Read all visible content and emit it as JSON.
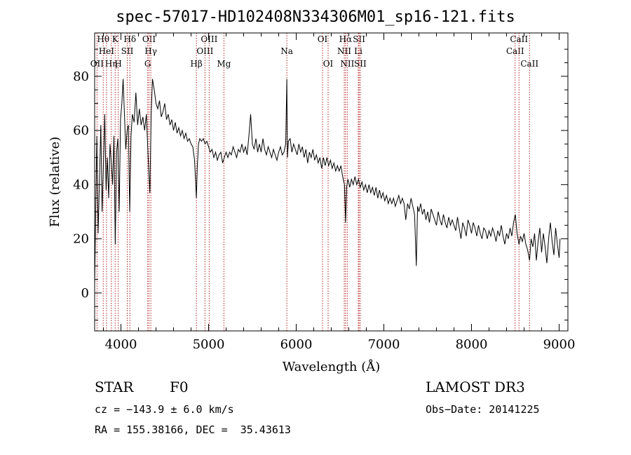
{
  "chart_data": {
    "type": "line",
    "title": "spec-57017-HD102408N334306M01_sp16-121.fits",
    "xlabel": "Wavelength (Å)",
    "ylabel": "Flux (relative)",
    "xlim": [
      3700,
      9100
    ],
    "ylim": [
      -14,
      96
    ],
    "x_ticks": [
      4000,
      5000,
      6000,
      7000,
      8000,
      9000
    ],
    "y_ticks": [
      0,
      20,
      40,
      60,
      80
    ],
    "series": [
      {
        "name": "spectrum",
        "points": [
          [
            3700,
            3
          ],
          [
            3712,
            30
          ],
          [
            3725,
            58
          ],
          [
            3740,
            22
          ],
          [
            3755,
            42
          ],
          [
            3770,
            62
          ],
          [
            3785,
            30
          ],
          [
            3800,
            47
          ],
          [
            3815,
            66
          ],
          [
            3830,
            38
          ],
          [
            3845,
            50
          ],
          [
            3860,
            35
          ],
          [
            3875,
            55
          ],
          [
            3890,
            48
          ],
          [
            3905,
            40
          ],
          [
            3920,
            58
          ],
          [
            3935,
            18
          ],
          [
            3950,
            52
          ],
          [
            3965,
            57
          ],
          [
            3980,
            30
          ],
          [
            3995,
            64
          ],
          [
            4010,
            70
          ],
          [
            4025,
            79
          ],
          [
            4040,
            66
          ],
          [
            4055,
            53
          ],
          [
            4070,
            60
          ],
          [
            4085,
            62
          ],
          [
            4100,
            30
          ],
          [
            4115,
            58
          ],
          [
            4130,
            66
          ],
          [
            4150,
            63
          ],
          [
            4170,
            74
          ],
          [
            4190,
            62
          ],
          [
            4210,
            68
          ],
          [
            4230,
            62
          ],
          [
            4250,
            65
          ],
          [
            4270,
            60
          ],
          [
            4290,
            66
          ],
          [
            4310,
            50
          ],
          [
            4330,
            37
          ],
          [
            4345,
            66
          ],
          [
            4360,
            79
          ],
          [
            4380,
            75
          ],
          [
            4400,
            70
          ],
          [
            4420,
            68
          ],
          [
            4440,
            71
          ],
          [
            4460,
            65
          ],
          [
            4480,
            67
          ],
          [
            4500,
            70
          ],
          [
            4520,
            64
          ],
          [
            4540,
            66
          ],
          [
            4560,
            62
          ],
          [
            4580,
            64
          ],
          [
            4600,
            60
          ],
          [
            4620,
            63
          ],
          [
            4640,
            59
          ],
          [
            4660,
            61
          ],
          [
            4680,
            58
          ],
          [
            4700,
            60
          ],
          [
            4720,
            57
          ],
          [
            4740,
            59
          ],
          [
            4760,
            56
          ],
          [
            4780,
            57
          ],
          [
            4800,
            55
          ],
          [
            4820,
            54
          ],
          [
            4840,
            49
          ],
          [
            4855,
            39
          ],
          [
            4861,
            35
          ],
          [
            4870,
            46
          ],
          [
            4885,
            55
          ],
          [
            4900,
            57
          ],
          [
            4920,
            56
          ],
          [
            4940,
            57
          ],
          [
            4960,
            55
          ],
          [
            4980,
            56
          ],
          [
            5000,
            54
          ],
          [
            5020,
            52
          ],
          [
            5040,
            53
          ],
          [
            5060,
            50
          ],
          [
            5080,
            52
          ],
          [
            5100,
            49
          ],
          [
            5120,
            51
          ],
          [
            5140,
            52
          ],
          [
            5160,
            48
          ],
          [
            5180,
            50
          ],
          [
            5200,
            52
          ],
          [
            5220,
            50
          ],
          [
            5240,
            52
          ],
          [
            5260,
            51
          ],
          [
            5280,
            54
          ],
          [
            5300,
            52
          ],
          [
            5320,
            50
          ],
          [
            5340,
            53
          ],
          [
            5360,
            52
          ],
          [
            5380,
            55
          ],
          [
            5400,
            52
          ],
          [
            5420,
            54
          ],
          [
            5440,
            51
          ],
          [
            5460,
            58
          ],
          [
            5480,
            66
          ],
          [
            5500,
            55
          ],
          [
            5520,
            53
          ],
          [
            5540,
            57
          ],
          [
            5560,
            52
          ],
          [
            5580,
            55
          ],
          [
            5600,
            52
          ],
          [
            5620,
            57
          ],
          [
            5640,
            53
          ],
          [
            5660,
            51
          ],
          [
            5680,
            54
          ],
          [
            5700,
            52
          ],
          [
            5720,
            50
          ],
          [
            5740,
            53
          ],
          [
            5760,
            51
          ],
          [
            5780,
            49
          ],
          [
            5800,
            52
          ],
          [
            5820,
            54
          ],
          [
            5840,
            51
          ],
          [
            5860,
            52
          ],
          [
            5880,
            55
          ],
          [
            5893,
            79
          ],
          [
            5900,
            50
          ],
          [
            5910,
            56
          ],
          [
            5930,
            57
          ],
          [
            5950,
            52
          ],
          [
            5970,
            55
          ],
          [
            5990,
            53
          ],
          [
            6010,
            51
          ],
          [
            6030,
            55
          ],
          [
            6050,
            52
          ],
          [
            6070,
            54
          ],
          [
            6090,
            50
          ],
          [
            6110,
            53
          ],
          [
            6130,
            48
          ],
          [
            6150,
            52
          ],
          [
            6170,
            50
          ],
          [
            6190,
            53
          ],
          [
            6210,
            49
          ],
          [
            6230,
            51
          ],
          [
            6250,
            48
          ],
          [
            6270,
            50
          ],
          [
            6290,
            46
          ],
          [
            6310,
            50
          ],
          [
            6330,
            47
          ],
          [
            6350,
            50
          ],
          [
            6370,
            47
          ],
          [
            6390,
            49
          ],
          [
            6410,
            46
          ],
          [
            6430,
            48
          ],
          [
            6450,
            45
          ],
          [
            6470,
            47
          ],
          [
            6490,
            45
          ],
          [
            6510,
            47
          ],
          [
            6530,
            43
          ],
          [
            6550,
            40
          ],
          [
            6563,
            26
          ],
          [
            6575,
            39
          ],
          [
            6590,
            42
          ],
          [
            6610,
            39
          ],
          [
            6630,
            42
          ],
          [
            6650,
            40
          ],
          [
            6670,
            43
          ],
          [
            6690,
            40
          ],
          [
            6710,
            42
          ],
          [
            6730,
            39
          ],
          [
            6750,
            41
          ],
          [
            6770,
            38
          ],
          [
            6790,
            40
          ],
          [
            6810,
            37
          ],
          [
            6830,
            40
          ],
          [
            6850,
            37
          ],
          [
            6870,
            39
          ],
          [
            6890,
            36
          ],
          [
            6910,
            39
          ],
          [
            6930,
            35
          ],
          [
            6950,
            38
          ],
          [
            6970,
            35
          ],
          [
            6990,
            37
          ],
          [
            7010,
            34
          ],
          [
            7030,
            36
          ],
          [
            7050,
            33
          ],
          [
            7070,
            35
          ],
          [
            7090,
            33
          ],
          [
            7110,
            35
          ],
          [
            7130,
            32
          ],
          [
            7150,
            34
          ],
          [
            7170,
            36
          ],
          [
            7190,
            33
          ],
          [
            7210,
            35
          ],
          [
            7230,
            33
          ],
          [
            7250,
            27
          ],
          [
            7270,
            33
          ],
          [
            7290,
            31
          ],
          [
            7310,
            35
          ],
          [
            7330,
            32
          ],
          [
            7350,
            29
          ],
          [
            7370,
            10
          ],
          [
            7385,
            32
          ],
          [
            7400,
            30
          ],
          [
            7420,
            33
          ],
          [
            7440,
            29
          ],
          [
            7460,
            31
          ],
          [
            7480,
            27
          ],
          [
            7500,
            30
          ],
          [
            7520,
            26
          ],
          [
            7540,
            31
          ],
          [
            7560,
            29
          ],
          [
            7580,
            27
          ],
          [
            7600,
            25
          ],
          [
            7620,
            30
          ],
          [
            7640,
            27
          ],
          [
            7660,
            25
          ],
          [
            7680,
            29
          ],
          [
            7700,
            26
          ],
          [
            7720,
            24
          ],
          [
            7740,
            28
          ],
          [
            7760,
            25
          ],
          [
            7780,
            27
          ],
          [
            7800,
            25
          ],
          [
            7820,
            23
          ],
          [
            7840,
            28
          ],
          [
            7860,
            24
          ],
          [
            7880,
            20
          ],
          [
            7900,
            26
          ],
          [
            7920,
            24
          ],
          [
            7940,
            21
          ],
          [
            7960,
            27
          ],
          [
            7980,
            25
          ],
          [
            8000,
            22
          ],
          [
            8020,
            26
          ],
          [
            8040,
            24
          ],
          [
            8060,
            21
          ],
          [
            8080,
            25
          ],
          [
            8100,
            22
          ],
          [
            8120,
            20
          ],
          [
            8140,
            24
          ],
          [
            8160,
            23
          ],
          [
            8180,
            20
          ],
          [
            8200,
            23
          ],
          [
            8220,
            21
          ],
          [
            8240,
            24
          ],
          [
            8260,
            22
          ],
          [
            8280,
            19
          ],
          [
            8300,
            23
          ],
          [
            8320,
            21
          ],
          [
            8340,
            25
          ],
          [
            8360,
            21
          ],
          [
            8380,
            18
          ],
          [
            8400,
            22
          ],
          [
            8420,
            20
          ],
          [
            8440,
            24
          ],
          [
            8460,
            21
          ],
          [
            8480,
            26
          ],
          [
            8500,
            29
          ],
          [
            8520,
            22
          ],
          [
            8542,
            18
          ],
          [
            8560,
            21
          ],
          [
            8580,
            19
          ],
          [
            8600,
            22
          ],
          [
            8620,
            18
          ],
          [
            8640,
            16
          ],
          [
            8662,
            12
          ],
          [
            8680,
            20
          ],
          [
            8700,
            17
          ],
          [
            8720,
            22
          ],
          [
            8740,
            12
          ],
          [
            8760,
            19
          ],
          [
            8780,
            24
          ],
          [
            8800,
            15
          ],
          [
            8820,
            22
          ],
          [
            8840,
            17
          ],
          [
            8860,
            11
          ],
          [
            8880,
            20
          ],
          [
            8900,
            26
          ],
          [
            8920,
            19
          ],
          [
            8940,
            14
          ],
          [
            8960,
            24
          ],
          [
            8980,
            18
          ],
          [
            9000,
            13
          ],
          [
            9010,
            20
          ]
        ]
      }
    ],
    "lines": [
      {
        "wavelength": 3727,
        "label": "OII",
        "row": 2
      },
      {
        "wavelength": 3798,
        "label": "Hθ",
        "row": 0
      },
      {
        "wavelength": 3835,
        "label": "HeI",
        "row": 1
      },
      {
        "wavelength": 3889,
        "label": "Hη",
        "row": 2
      },
      {
        "wavelength": 3934,
        "label": "K",
        "row": 0
      },
      {
        "wavelength": 3969,
        "label": "H",
        "row": 2
      },
      {
        "wavelength": 4072,
        "label": "SII",
        "row": 1
      },
      {
        "wavelength": 4102,
        "label": "Hδ",
        "row": 0
      },
      {
        "wavelength": 4305,
        "label": "G",
        "row": 2
      },
      {
        "wavelength": 4320,
        "label": "OII",
        "row": 0
      },
      {
        "wavelength": 4341,
        "label": "Hγ",
        "row": 1
      },
      {
        "wavelength": 4861,
        "label": "Hβ",
        "row": 2
      },
      {
        "wavelength": 4959,
        "label": "OIII",
        "row": 1
      },
      {
        "wavelength": 5007,
        "label": "OIII",
        "row": 0
      },
      {
        "wavelength": 5175,
        "label": "Mg",
        "row": 2
      },
      {
        "wavelength": 5893,
        "label": "Na",
        "row": 1
      },
      {
        "wavelength": 6300,
        "label": "OI",
        "row": 0
      },
      {
        "wavelength": 6364,
        "label": "OI",
        "row": 2
      },
      {
        "wavelength": 6548,
        "label": "NII",
        "row": 1
      },
      {
        "wavelength": 6563,
        "label": "Hα",
        "row": 0
      },
      {
        "wavelength": 6583,
        "label": "NII",
        "row": 2
      },
      {
        "wavelength": 6708,
        "label": "Li",
        "row": 1
      },
      {
        "wavelength": 6717,
        "label": "SII",
        "row": 0
      },
      {
        "wavelength": 6731,
        "label": "SII",
        "row": 2
      },
      {
        "wavelength": 8498,
        "label": "CaII",
        "row": 1
      },
      {
        "wavelength": 8542,
        "label": "CaII",
        "row": 0
      },
      {
        "wavelength": 8662,
        "label": "CaII",
        "row": 2
      }
    ]
  },
  "info": {
    "object_class": "STAR",
    "subclass": "F0",
    "survey": "LAMOST DR3",
    "redshift": "cz = −143.9 ± 6.0 km/s",
    "obs_date": "Obs−Date: 20141225",
    "coords": "RA = 155.38166, DEC =  35.43613"
  },
  "colors": {
    "spectrum": "#000000",
    "line_markers": "#b22222",
    "frame": "#000000"
  }
}
